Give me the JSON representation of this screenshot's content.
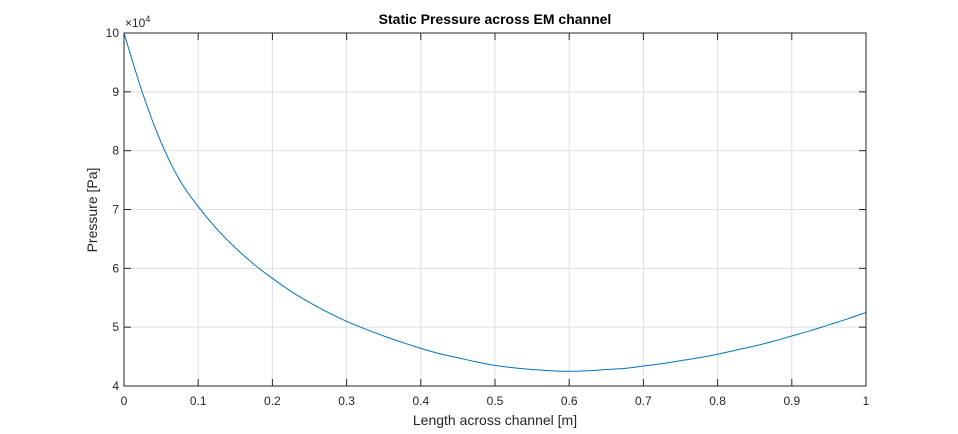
{
  "chart_data": {
    "type": "line",
    "title": "Static Pressure across EM channel",
    "xlabel": "Length across channel [m]",
    "ylabel": "Pressure [Pa]",
    "exponent_label": {
      "base": "×10",
      "power": "4"
    },
    "xlim": [
      0,
      1
    ],
    "ylim": [
      4,
      10
    ],
    "grid": true,
    "xticks": [
      0,
      0.1,
      0.2,
      0.3,
      0.4,
      0.5,
      0.6,
      0.7,
      0.8,
      0.9,
      1
    ],
    "xtick_labels": [
      "0",
      "0.1",
      "0.2",
      "0.3",
      "0.4",
      "0.5",
      "0.6",
      "0.7",
      "0.8",
      "0.9",
      "1"
    ],
    "yticks": [
      4,
      5,
      6,
      7,
      8,
      9,
      10
    ],
    "ytick_labels": [
      "4",
      "5",
      "6",
      "7",
      "8",
      "9",
      "10"
    ],
    "series": [
      {
        "name": "Static Pressure",
        "color": "#0072bd",
        "x": [
          0,
          0.025,
          0.05,
          0.075,
          0.1,
          0.125,
          0.15,
          0.175,
          0.2,
          0.225,
          0.25,
          0.275,
          0.3,
          0.325,
          0.35,
          0.375,
          0.4,
          0.425,
          0.45,
          0.475,
          0.5,
          0.525,
          0.55,
          0.575,
          0.6,
          0.625,
          0.65,
          0.675,
          0.7,
          0.725,
          0.75,
          0.775,
          0.8,
          0.825,
          0.85,
          0.875,
          0.9,
          0.925,
          0.95,
          0.975,
          1
        ],
        "y": [
          10.0,
          8.98,
          8.14,
          7.5,
          7.05,
          6.67,
          6.35,
          6.07,
          5.83,
          5.61,
          5.42,
          5.25,
          5.1,
          4.97,
          4.85,
          4.74,
          4.64,
          4.55,
          4.48,
          4.41,
          4.35,
          4.31,
          4.28,
          4.26,
          4.25,
          4.26,
          4.28,
          4.3,
          4.34,
          4.38,
          4.43,
          4.48,
          4.54,
          4.61,
          4.68,
          4.76,
          4.85,
          4.94,
          5.04,
          5.14,
          5.25
        ]
      }
    ]
  }
}
